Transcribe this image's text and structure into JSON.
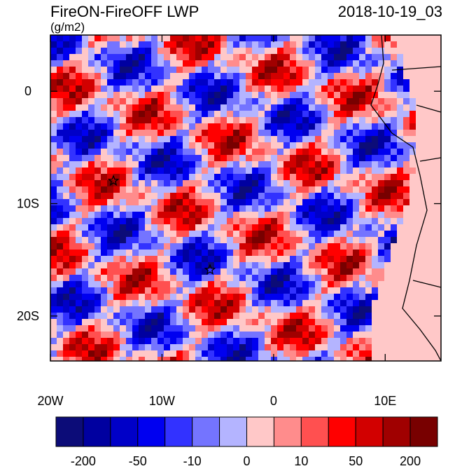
{
  "chart_data": {
    "type": "map",
    "title": "FireON-FireOFF LWP",
    "subtitle": "2018-10-19_03",
    "units": "(g/m2)",
    "xlim": [
      -20,
      15
    ],
    "ylim": [
      -24,
      5
    ],
    "xticks": [
      {
        "value": -20,
        "label": "20W"
      },
      {
        "value": -10,
        "label": "10W"
      },
      0,
      {
        "value": 10,
        "label": "10E"
      }
    ],
    "yticks": [
      0,
      {
        "value": -10,
        "label": "10S"
      },
      {
        "value": -20,
        "label": "20S"
      }
    ],
    "colorbar": {
      "colors": [
        "#0c0c78",
        "#0000a0",
        "#0000c8",
        "#0000f0",
        "#3232ff",
        "#7474ff",
        "#b4b4ff",
        "#ffc8c8",
        "#ff8c8c",
        "#ff5050",
        "#ff0000",
        "#d20000",
        "#a00000",
        "#780000"
      ],
      "labels": [
        -200,
        -50,
        -10,
        0,
        10,
        50,
        200
      ]
    }
  }
}
